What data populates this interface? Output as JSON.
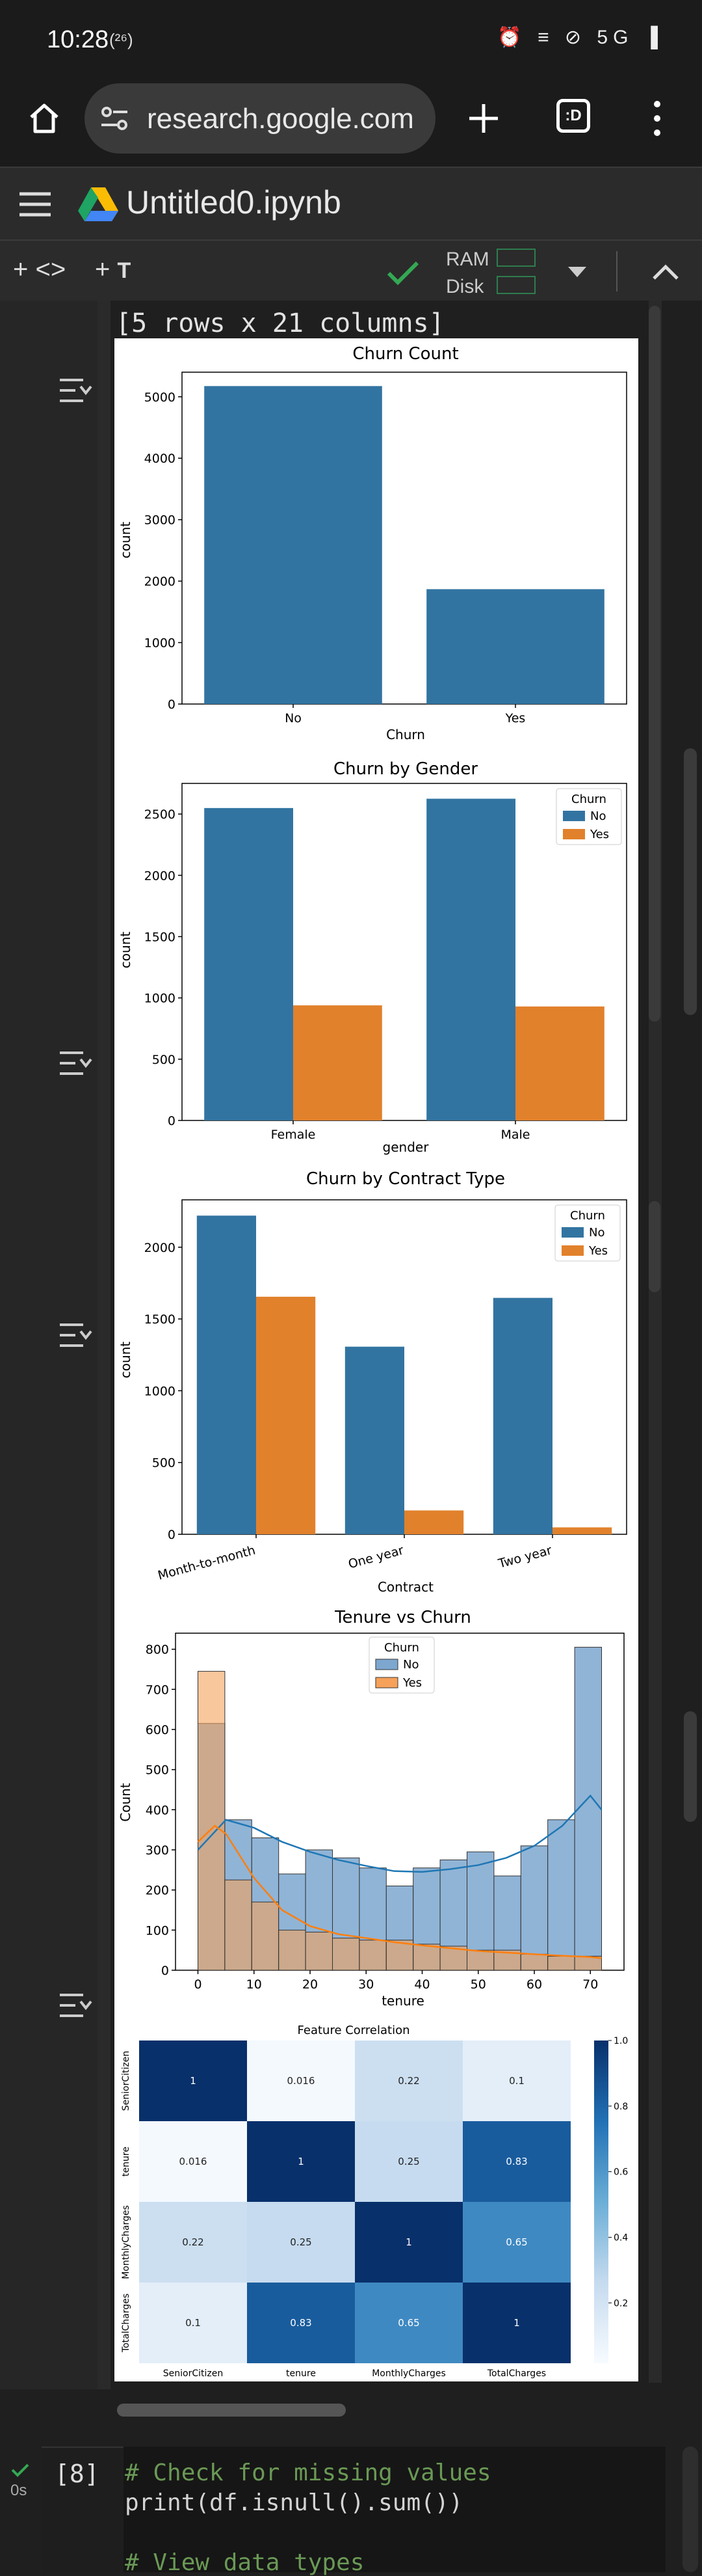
{
  "status_bar": {
    "time": "10:28",
    "wifi_badge": "(²⁶)",
    "right_icons": "⏰ ≡ ⊘ 5G ▐"
  },
  "browser": {
    "url": "research.google.com",
    "tab_switcher_label": ":D"
  },
  "colab": {
    "title": "Untitled0.ipynb",
    "ram_label": "RAM",
    "disk_label": "Disk"
  },
  "output": {
    "rows_text": "[5 rows x 21 columns]"
  },
  "colors": {
    "blue": "#1f77b4",
    "orange": "#ff7f0e",
    "orange_bar": "#e1812c",
    "blue_bar": "#3274a1"
  },
  "charts": {
    "churn_count": {
      "title": "Churn Count",
      "xlabel": "Churn",
      "ylabel": "count"
    },
    "gender": {
      "title": "Churn by Gender",
      "xlabel": "gender",
      "ylabel": "count",
      "legend_title": "Churn"
    },
    "contract": {
      "title": "Churn by Contract Type",
      "xlabel": "Contract",
      "ylabel": "count",
      "legend_title": "Churn"
    },
    "tenure": {
      "title": "Tenure vs Churn",
      "xlabel": "tenure",
      "ylabel": "Count",
      "legend_title": "Churn"
    },
    "corr": {
      "title": "Feature Correlation"
    }
  },
  "chart_data": [
    {
      "type": "bar",
      "title": "Churn Count",
      "xlabel": "Churn",
      "ylabel": "count",
      "categories": [
        "No",
        "Yes"
      ],
      "values": [
        5174,
        1869
      ],
      "ylim": [
        0,
        5400
      ],
      "yticks": [
        0,
        1000,
        2000,
        3000,
        4000,
        5000
      ]
    },
    {
      "type": "bar",
      "title": "Churn by Gender",
      "xlabel": "gender",
      "ylabel": "count",
      "categories": [
        "Female",
        "Male"
      ],
      "series": [
        {
          "name": "No",
          "values": [
            2549,
            2625
          ]
        },
        {
          "name": "Yes",
          "values": [
            939,
            930
          ]
        }
      ],
      "ylim": [
        0,
        2750
      ],
      "yticks": [
        0,
        500,
        1000,
        1500,
        2000,
        2500
      ],
      "legend": "top-right"
    },
    {
      "type": "bar",
      "title": "Churn by Contract Type",
      "xlabel": "Contract",
      "ylabel": "count",
      "categories": [
        "Month-to-month",
        "One year",
        "Two year"
      ],
      "series": [
        {
          "name": "No",
          "values": [
            2220,
            1307,
            1647
          ]
        },
        {
          "name": "Yes",
          "values": [
            1655,
            166,
            48
          ]
        }
      ],
      "ylim": [
        0,
        2330
      ],
      "yticks": [
        0,
        500,
        1000,
        1500,
        2000
      ],
      "legend": "top-right"
    },
    {
      "type": "bar",
      "title": "Tenure vs Churn",
      "xlabel": "tenure",
      "ylabel": "Count",
      "bin_edges": [
        0,
        4.8,
        9.6,
        14.4,
        19.2,
        24,
        28.8,
        33.6,
        38.4,
        43.2,
        48,
        52.8,
        57.6,
        62.4,
        67.2,
        72
      ],
      "series": [
        {
          "name": "No",
          "values": [
            615,
            375,
            330,
            240,
            300,
            280,
            255,
            210,
            255,
            275,
            295,
            235,
            310,
            375,
            805
          ]
        },
        {
          "name": "Yes",
          "values": [
            745,
            225,
            170,
            100,
            95,
            80,
            75,
            75,
            65,
            60,
            50,
            50,
            40,
            35,
            35
          ]
        }
      ],
      "kde": [
        {
          "name": "No",
          "x": [
            0,
            5,
            10,
            15,
            20,
            25,
            30,
            35,
            40,
            45,
            50,
            55,
            60,
            65,
            70,
            72
          ],
          "y": [
            300,
            375,
            355,
            320,
            295,
            275,
            260,
            247,
            245,
            252,
            262,
            280,
            310,
            360,
            435,
            400
          ]
        },
        {
          "name": "Yes",
          "x": [
            0,
            3,
            5,
            10,
            15,
            20,
            25,
            30,
            35,
            40,
            45,
            50,
            55,
            60,
            65,
            70,
            72
          ],
          "y": [
            320,
            360,
            340,
            230,
            150,
            110,
            90,
            80,
            70,
            62,
            55,
            48,
            44,
            40,
            36,
            33,
            30
          ]
        }
      ],
      "xlim": [
        -4,
        76
      ],
      "ylim": [
        0,
        840
      ],
      "xticks": [
        0,
        10,
        20,
        30,
        40,
        50,
        60,
        70
      ],
      "yticks": [
        0,
        100,
        200,
        300,
        400,
        500,
        600,
        700,
        800
      ],
      "legend": "top-center"
    },
    {
      "type": "heatmap",
      "title": "Feature Correlation",
      "labels": [
        "SeniorCitizen",
        "tenure",
        "MonthlyCharges",
        "TotalCharges"
      ],
      "values": [
        [
          1,
          0.016,
          0.22,
          0.1
        ],
        [
          0.016,
          1,
          0.25,
          0.83
        ],
        [
          0.22,
          0.25,
          1,
          0.65
        ],
        [
          0.1,
          0.83,
          0.65,
          1
        ]
      ],
      "value_labels": [
        [
          "1",
          "0.016",
          "0.22",
          "0.1"
        ],
        [
          "0.016",
          "1",
          "0.25",
          "0.83"
        ],
        [
          "0.22",
          "0.25",
          "1",
          "0.65"
        ],
        [
          "0.1",
          "0.83",
          "0.65",
          "1"
        ]
      ],
      "colorbar_ticks": [
        "0.2",
        "0.4",
        "0.6",
        "0.8",
        "1.0"
      ],
      "colormap": "Blues"
    }
  ],
  "code_cell": {
    "exec_time": "0s",
    "number": "[8]",
    "lines": [
      "# Check for missing values",
      "print(df.isnull().sum())",
      "",
      "# View data types"
    ]
  }
}
